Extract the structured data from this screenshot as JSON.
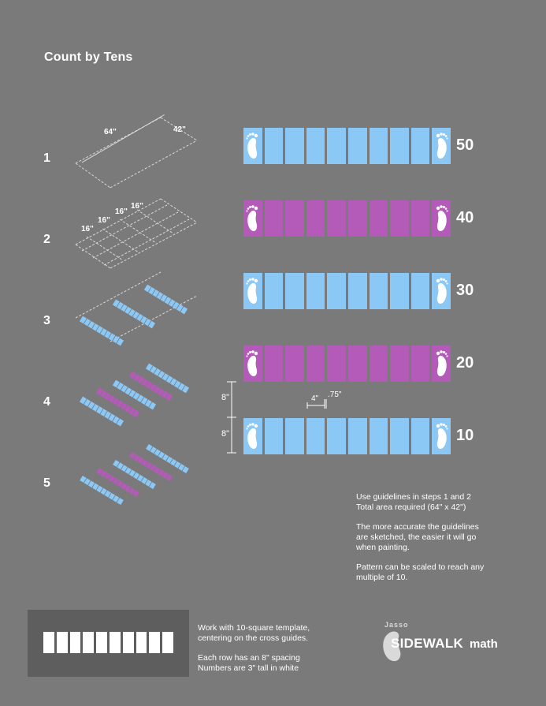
{
  "title": "Count by Tens",
  "colors": {
    "blue": "#8cc8f5",
    "purple": "#b45ab8",
    "background": "#7a7a7a",
    "panel": "#5e5e5e"
  },
  "steps": [
    {
      "label": "1"
    },
    {
      "label": "2"
    },
    {
      "label": "3"
    },
    {
      "label": "4"
    },
    {
      "label": "5"
    }
  ],
  "step1_dims": {
    "width": "64\"",
    "depth": "42\""
  },
  "step2_dims": [
    "16\"",
    "16\"",
    "16\"",
    "16\""
  ],
  "rows": [
    {
      "number": "50",
      "color": "blue"
    },
    {
      "number": "40",
      "color": "purple"
    },
    {
      "number": "30",
      "color": "blue"
    },
    {
      "number": "20",
      "color": "purple"
    },
    {
      "number": "10",
      "color": "blue"
    }
  ],
  "measurements": {
    "row_spacing_top": "8\"",
    "row_spacing_bottom": "8\"",
    "square_width": "4\"",
    "gap": ".75\""
  },
  "notes": [
    [
      "Use guidelines in steps 1 and 2",
      "Total area required (64\" x 42\")"
    ],
    [
      "The more accurate the guidelines",
      "are sketched, the easier it will go",
      "when painting."
    ],
    [
      "Pattern can be scaled to reach any",
      "multiple of 10."
    ]
  ],
  "template_notes": [
    [
      "Work with 10-square template,",
      "centering on the cross guides."
    ],
    [
      "Each row has an 8\" spacing",
      "Numbers are 3\" tall in white"
    ]
  ],
  "brand": {
    "top": "Jasso",
    "main": "SIDEWALK",
    "suffix": "math"
  }
}
